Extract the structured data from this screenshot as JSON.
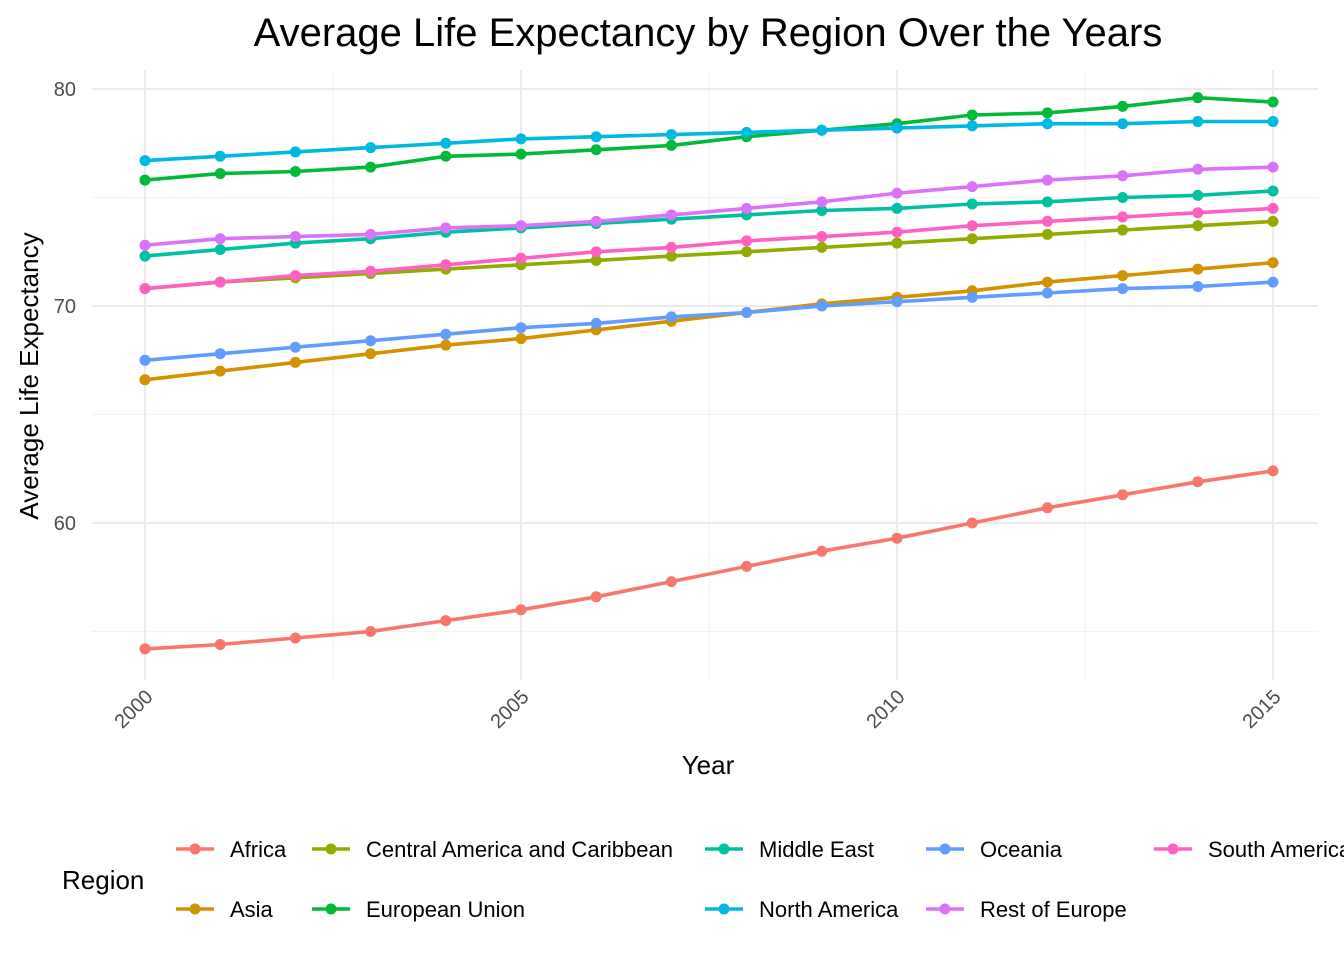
{
  "chart_data": {
    "type": "line",
    "title": "Average Life Expectancy by Region Over the Years",
    "xlabel": "Year",
    "ylabel": "Average Life Expectancy",
    "x": [
      2000,
      2001,
      2002,
      2003,
      2004,
      2005,
      2006,
      2007,
      2008,
      2009,
      2010,
      2011,
      2012,
      2013,
      2014,
      2015
    ],
    "xticks": [
      "2000",
      "2005",
      "2010",
      "2015"
    ],
    "yticks": [
      "60",
      "70",
      "80"
    ],
    "xlim": [
      2000,
      2015
    ],
    "ylim": [
      54.1,
      79.6
    ],
    "grid": true,
    "legend": {
      "title": "Region",
      "position": "bottom"
    },
    "series": [
      {
        "name": "Africa",
        "color": "#F8766D",
        "values": [
          54.2,
          54.4,
          54.7,
          55.0,
          55.5,
          56.0,
          56.6,
          57.3,
          58.0,
          58.7,
          59.3,
          60.0,
          60.7,
          61.3,
          61.9,
          62.4
        ]
      },
      {
        "name": "Asia",
        "color": "#D39200",
        "values": [
          66.6,
          67.0,
          67.4,
          67.8,
          68.2,
          68.5,
          68.9,
          69.3,
          69.7,
          70.1,
          70.4,
          70.7,
          71.1,
          71.4,
          71.7,
          72.0
        ]
      },
      {
        "name": "Central America and Caribbean",
        "color": "#93AA00",
        "values": [
          70.8,
          71.1,
          71.3,
          71.5,
          71.7,
          71.9,
          72.1,
          72.3,
          72.5,
          72.7,
          72.9,
          73.1,
          73.3,
          73.5,
          73.7,
          73.9
        ]
      },
      {
        "name": "European Union",
        "color": "#00BA38",
        "values": [
          75.8,
          76.1,
          76.2,
          76.4,
          76.9,
          77.0,
          77.2,
          77.4,
          77.8,
          78.1,
          78.4,
          78.8,
          78.9,
          79.2,
          79.6,
          79.4
        ]
      },
      {
        "name": "Middle East",
        "color": "#00C19F",
        "values": [
          72.3,
          72.6,
          72.9,
          73.1,
          73.4,
          73.6,
          73.8,
          74.0,
          74.2,
          74.4,
          74.5,
          74.7,
          74.8,
          75.0,
          75.1,
          75.3
        ]
      },
      {
        "name": "North America",
        "color": "#00B9E3",
        "values": [
          76.7,
          76.9,
          77.1,
          77.3,
          77.5,
          77.7,
          77.8,
          77.9,
          78.0,
          78.1,
          78.2,
          78.3,
          78.4,
          78.4,
          78.5,
          78.5
        ]
      },
      {
        "name": "Oceania",
        "color": "#619CFF",
        "values": [
          67.5,
          67.8,
          68.1,
          68.4,
          68.7,
          69.0,
          69.2,
          69.5,
          69.7,
          70.0,
          70.2,
          70.4,
          70.6,
          70.8,
          70.9,
          71.1
        ]
      },
      {
        "name": "Rest of Europe",
        "color": "#DB72FB",
        "values": [
          72.8,
          73.1,
          73.2,
          73.3,
          73.6,
          73.7,
          73.9,
          74.2,
          74.5,
          74.8,
          75.2,
          75.5,
          75.8,
          76.0,
          76.3,
          76.4
        ]
      },
      {
        "name": "South America",
        "color": "#FF61C3",
        "values": [
          70.8,
          71.1,
          71.4,
          71.6,
          71.9,
          72.2,
          72.5,
          72.7,
          73.0,
          73.2,
          73.4,
          73.7,
          73.9,
          74.1,
          74.3,
          74.5
        ]
      }
    ]
  }
}
